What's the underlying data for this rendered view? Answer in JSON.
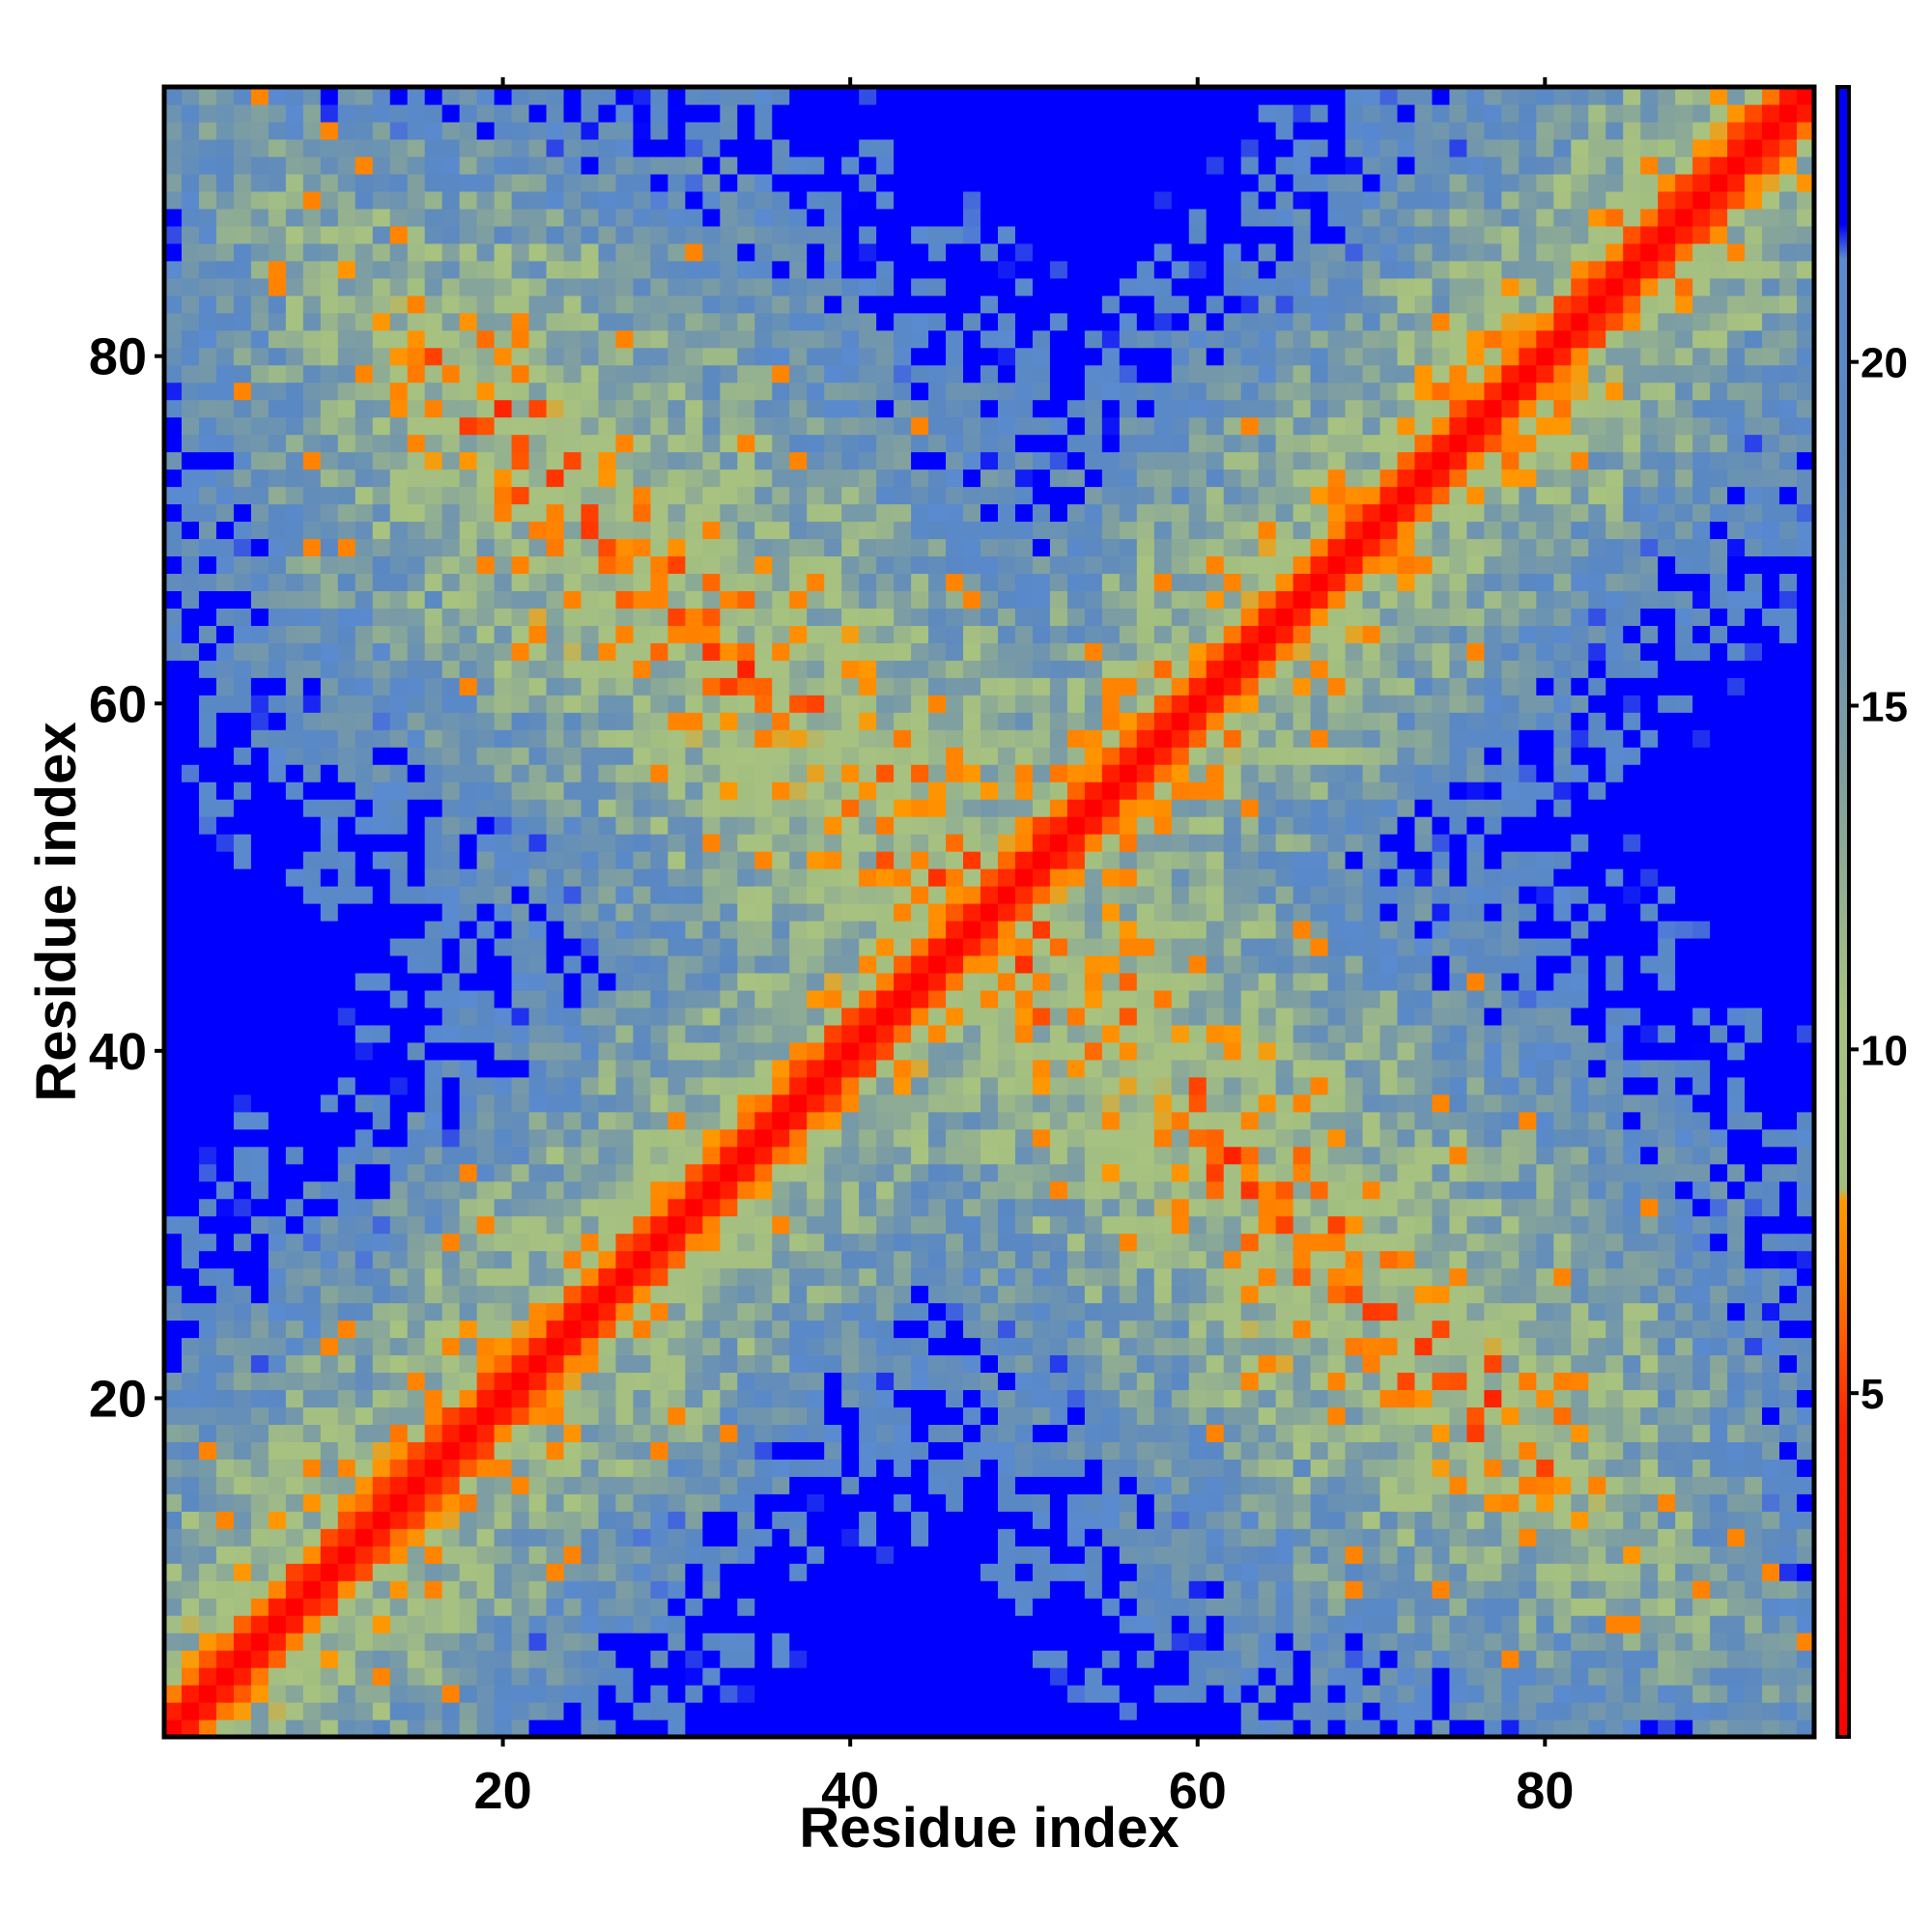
{
  "chart_data": {
    "type": "heatmap",
    "title": "",
    "xlabel": "Residue index",
    "ylabel": "Residue index",
    "n_residues": 95,
    "xlim": [
      0.5,
      95.5
    ],
    "ylim": [
      0.5,
      95.5
    ],
    "x_ticks": [
      20,
      40,
      60,
      80
    ],
    "y_ticks": [
      20,
      40,
      60,
      80
    ],
    "colorbar": {
      "ticks": [
        5,
        10,
        15,
        20
      ],
      "range": [
        0,
        24
      ],
      "stops": [
        {
          "value": 0,
          "color": "#ff0000"
        },
        {
          "value": 4.5,
          "color": "#ff2200"
        },
        {
          "value": 6.5,
          "color": "#ff7700"
        },
        {
          "value": 7.8,
          "color": "#ff9900"
        },
        {
          "value": 8.0,
          "color": "#a3bf80"
        },
        {
          "value": 10.5,
          "color": "#a8c280"
        },
        {
          "value": 14.0,
          "color": "#7f9fa0"
        },
        {
          "value": 19.0,
          "color": "#5a88c2"
        },
        {
          "value": 21.5,
          "color": "#5a8ad0"
        },
        {
          "value": 22.0,
          "color": "#0000ff"
        },
        {
          "value": 24,
          "color": "#0000ff"
        }
      ]
    },
    "cutoff_color": "#0000ff",
    "cutoff_value": 22,
    "description_values": {
      "diagonal": 0,
      "first_neighbor": 5,
      "second_neighbor": 7,
      "cross_diagonal_center": 48
    }
  }
}
